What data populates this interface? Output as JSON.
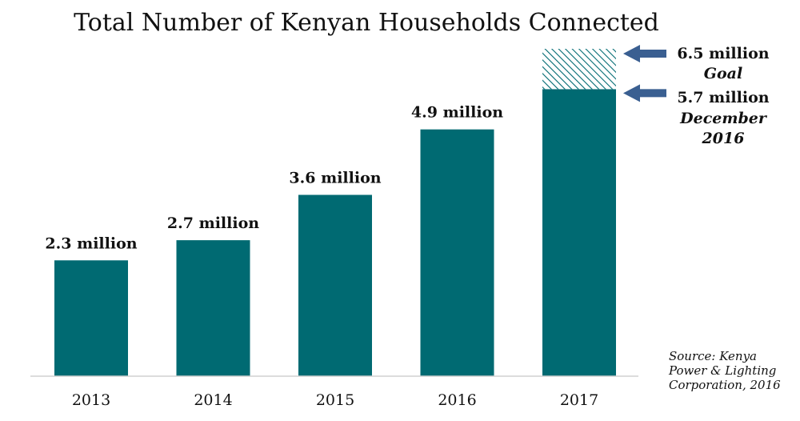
{
  "chart_data": {
    "type": "bar",
    "title": "Total Number of Kenyan Households Connected",
    "xlabel": "",
    "ylabel": "",
    "categories": [
      "2013",
      "2014",
      "2015",
      "2016",
      "2017"
    ],
    "values": [
      2.3,
      2.7,
      3.6,
      4.9,
      5.7
    ],
    "value_labels": [
      "2.3 million",
      "2.7 million",
      "3.6 million",
      "4.9 million",
      ""
    ],
    "ylim": [
      0,
      6.5
    ],
    "grid": false,
    "legend": "none",
    "goal": {
      "category": "2017",
      "value": 6.5,
      "value_label": "6.5 million",
      "note": "Goal"
    },
    "current": {
      "category": "2017",
      "value": 5.7,
      "value_label": "5.7 million",
      "note_lines": [
        "December",
        "2016"
      ]
    },
    "source_lines": [
      "Source: Kenya",
      "Power & Lighting",
      "Corporation, 2016"
    ],
    "colors": {
      "bar": "#006a72",
      "arrow": "#3a5f91",
      "axis": "#d0d0d0"
    }
  }
}
